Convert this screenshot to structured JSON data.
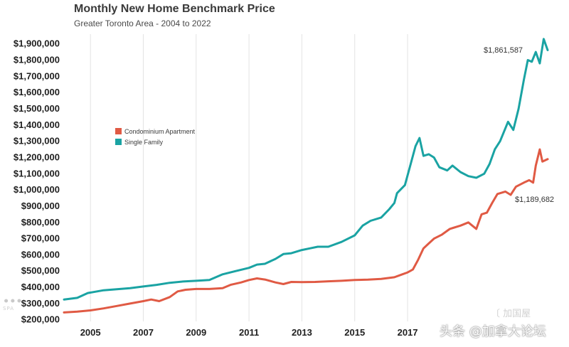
{
  "title": "Monthly New Home Benchmark Price",
  "subtitle": "Greater Toronto Area - 2004 to 2022",
  "watermarks": {
    "left": "⚫︎⚫︎⚫︎",
    "left_small": "SPA",
    "right_top": "〔 加国屋",
    "right_bottom": "头条 @加拿大论坛"
  },
  "colors": {
    "condo": "#e05a44",
    "single": "#1aa3a3"
  },
  "chart_data": {
    "type": "line",
    "title": "Monthly New Home Benchmark Price",
    "subtitle": "Greater Toronto Area - 2004 to 2022",
    "xlim": [
      2004,
      2022.3
    ],
    "ylim": [
      190000,
      1960000
    ],
    "x_ticks": [
      {
        "value": 2005,
        "label": "2005"
      },
      {
        "value": 2007,
        "label": "2007"
      },
      {
        "value": 2009,
        "label": "2009"
      },
      {
        "value": 2011,
        "label": "2011"
      },
      {
        "value": 2013,
        "label": "2013"
      },
      {
        "value": 2015,
        "label": "2015"
      },
      {
        "value": 2017,
        "label": "2017"
      }
    ],
    "y_ticks": [
      {
        "value": 200000,
        "label": "$200,000"
      },
      {
        "value": 300000,
        "label": "$300,000"
      },
      {
        "value": 400000,
        "label": "$400,000"
      },
      {
        "value": 500000,
        "label": "$500,000"
      },
      {
        "value": 600000,
        "label": "$600,000"
      },
      {
        "value": 700000,
        "label": "$700,000"
      },
      {
        "value": 800000,
        "label": "$800,000"
      },
      {
        "value": 900000,
        "label": "$900,000"
      },
      {
        "value": 1000000,
        "label": "$1,000,000"
      },
      {
        "value": 1100000,
        "label": "$1,100,000"
      },
      {
        "value": 1200000,
        "label": "$1,200,000"
      },
      {
        "value": 1300000,
        "label": "$1,300,000"
      },
      {
        "value": 1400000,
        "label": "$1,400,000"
      },
      {
        "value": 1500000,
        "label": "$1,500,000"
      },
      {
        "value": 1600000,
        "label": "$1,600,000"
      },
      {
        "value": 1700000,
        "label": "$1,700,000"
      },
      {
        "value": 1800000,
        "label": "$1,800,000"
      },
      {
        "value": 1900000,
        "label": "$1,900,000"
      }
    ],
    "grid": "vertical",
    "legend_position": "left-middle",
    "series": [
      {
        "name": "Condominium Apartment",
        "color": "#e05a44",
        "points": [
          [
            2004.0,
            245000
          ],
          [
            2004.5,
            250000
          ],
          [
            2005.0,
            258000
          ],
          [
            2005.5,
            270000
          ],
          [
            2006.0,
            285000
          ],
          [
            2006.5,
            300000
          ],
          [
            2007.0,
            315000
          ],
          [
            2007.3,
            325000
          ],
          [
            2007.6,
            315000
          ],
          [
            2008.0,
            340000
          ],
          [
            2008.3,
            375000
          ],
          [
            2008.6,
            385000
          ],
          [
            2009.0,
            390000
          ],
          [
            2009.5,
            390000
          ],
          [
            2010.0,
            395000
          ],
          [
            2010.3,
            415000
          ],
          [
            2010.7,
            430000
          ],
          [
            2011.0,
            445000
          ],
          [
            2011.3,
            455000
          ],
          [
            2011.6,
            448000
          ],
          [
            2012.0,
            430000
          ],
          [
            2012.3,
            420000
          ],
          [
            2012.6,
            433000
          ],
          [
            2013.0,
            432000
          ],
          [
            2013.5,
            433000
          ],
          [
            2014.0,
            437000
          ],
          [
            2014.5,
            440000
          ],
          [
            2015.0,
            445000
          ],
          [
            2015.5,
            447000
          ],
          [
            2016.0,
            452000
          ],
          [
            2016.5,
            462000
          ],
          [
            2016.8,
            480000
          ],
          [
            2017.0,
            492000
          ],
          [
            2017.2,
            510000
          ],
          [
            2017.4,
            570000
          ],
          [
            2017.6,
            640000
          ],
          [
            2017.8,
            670000
          ],
          [
            2018.0,
            700000
          ],
          [
            2018.3,
            725000
          ],
          [
            2018.6,
            760000
          ],
          [
            2019.0,
            780000
          ],
          [
            2019.3,
            800000
          ],
          [
            2019.6,
            760000
          ],
          [
            2019.8,
            850000
          ],
          [
            2020.0,
            860000
          ],
          [
            2020.2,
            920000
          ],
          [
            2020.4,
            975000
          ],
          [
            2020.7,
            990000
          ],
          [
            2020.9,
            970000
          ],
          [
            2021.1,
            1020000
          ],
          [
            2021.4,
            1045000
          ],
          [
            2021.6,
            1060000
          ],
          [
            2021.75,
            1045000
          ],
          [
            2021.85,
            1150000
          ],
          [
            2022.0,
            1250000
          ],
          [
            2022.1,
            1175000
          ],
          [
            2022.3,
            1189682
          ]
        ],
        "end_label": "$1,189,682"
      },
      {
        "name": "Single Family",
        "color": "#1aa3a3",
        "points": [
          [
            2004.0,
            325000
          ],
          [
            2004.5,
            335000
          ],
          [
            2004.9,
            365000
          ],
          [
            2005.5,
            382000
          ],
          [
            2006.0,
            388000
          ],
          [
            2006.5,
            395000
          ],
          [
            2007.0,
            405000
          ],
          [
            2007.5,
            415000
          ],
          [
            2008.0,
            428000
          ],
          [
            2008.5,
            436000
          ],
          [
            2009.0,
            440000
          ],
          [
            2009.5,
            445000
          ],
          [
            2010.0,
            480000
          ],
          [
            2010.5,
            500000
          ],
          [
            2011.0,
            520000
          ],
          [
            2011.3,
            540000
          ],
          [
            2011.6,
            545000
          ],
          [
            2012.0,
            575000
          ],
          [
            2012.3,
            605000
          ],
          [
            2012.6,
            610000
          ],
          [
            2013.0,
            630000
          ],
          [
            2013.3,
            640000
          ],
          [
            2013.6,
            650000
          ],
          [
            2014.0,
            650000
          ],
          [
            2014.5,
            680000
          ],
          [
            2015.0,
            720000
          ],
          [
            2015.3,
            780000
          ],
          [
            2015.6,
            810000
          ],
          [
            2016.0,
            830000
          ],
          [
            2016.3,
            880000
          ],
          [
            2016.5,
            920000
          ],
          [
            2016.6,
            980000
          ],
          [
            2016.9,
            1030000
          ],
          [
            2017.1,
            1150000
          ],
          [
            2017.3,
            1270000
          ],
          [
            2017.45,
            1320000
          ],
          [
            2017.6,
            1210000
          ],
          [
            2017.8,
            1220000
          ],
          [
            2018.0,
            1200000
          ],
          [
            2018.2,
            1140000
          ],
          [
            2018.5,
            1120000
          ],
          [
            2018.7,
            1150000
          ],
          [
            2019.0,
            1110000
          ],
          [
            2019.3,
            1085000
          ],
          [
            2019.6,
            1075000
          ],
          [
            2019.9,
            1100000
          ],
          [
            2020.1,
            1160000
          ],
          [
            2020.3,
            1250000
          ],
          [
            2020.5,
            1300000
          ],
          [
            2020.8,
            1420000
          ],
          [
            2021.0,
            1370000
          ],
          [
            2021.2,
            1500000
          ],
          [
            2021.4,
            1680000
          ],
          [
            2021.55,
            1800000
          ],
          [
            2021.7,
            1790000
          ],
          [
            2021.85,
            1850000
          ],
          [
            2022.0,
            1780000
          ],
          [
            2022.15,
            1930000
          ],
          [
            2022.3,
            1861587
          ]
        ],
        "end_label": "$1,861,587"
      }
    ]
  }
}
